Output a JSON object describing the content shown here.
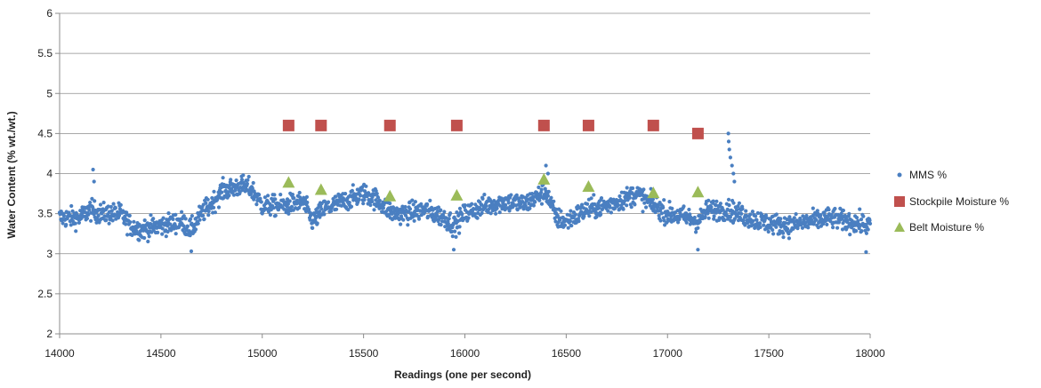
{
  "chart_data": {
    "type": "scatter",
    "xlabel": "Readings (one per second)",
    "ylabel": "Water Content (% wt./wt.)",
    "xlim": [
      14000,
      18000
    ],
    "ylim": [
      2,
      6
    ],
    "xticks": [
      14000,
      14500,
      15000,
      15500,
      16000,
      16500,
      17000,
      17500,
      18000
    ],
    "yticks": [
      2,
      2.5,
      3,
      3.5,
      4,
      4.5,
      5,
      5.5,
      6
    ],
    "xtick_labels": [
      "14000",
      "14500",
      "15000",
      "15500",
      "16000",
      "16500",
      "17000",
      "17500",
      "18000"
    ],
    "ytick_labels": [
      "2",
      "2.5",
      "3",
      "3.5",
      "4",
      "4.5",
      "5",
      "5.5",
      "6"
    ],
    "grid": "horizontal",
    "legend_position": "right",
    "series": [
      {
        "name": "MMS %",
        "marker": "circle",
        "color": "#4a7fc1",
        "profile": [
          [
            14000,
            3.45
          ],
          [
            14100,
            3.45
          ],
          [
            14150,
            3.55
          ],
          [
            14200,
            3.5
          ],
          [
            14300,
            3.5
          ],
          [
            14350,
            3.35
          ],
          [
            14400,
            3.3
          ],
          [
            14500,
            3.35
          ],
          [
            14600,
            3.4
          ],
          [
            14650,
            3.3
          ],
          [
            14700,
            3.5
          ],
          [
            14760,
            3.65
          ],
          [
            14800,
            3.78
          ],
          [
            14900,
            3.85
          ],
          [
            14950,
            3.8
          ],
          [
            15000,
            3.6
          ],
          [
            15100,
            3.6
          ],
          [
            15200,
            3.65
          ],
          [
            15250,
            3.4
          ],
          [
            15300,
            3.55
          ],
          [
            15400,
            3.65
          ],
          [
            15500,
            3.75
          ],
          [
            15550,
            3.7
          ],
          [
            15600,
            3.6
          ],
          [
            15650,
            3.5
          ],
          [
            15700,
            3.5
          ],
          [
            15800,
            3.55
          ],
          [
            15900,
            3.45
          ],
          [
            15950,
            3.35
          ],
          [
            16000,
            3.5
          ],
          [
            16100,
            3.6
          ],
          [
            16200,
            3.65
          ],
          [
            16300,
            3.62
          ],
          [
            16400,
            3.78
          ],
          [
            16450,
            3.45
          ],
          [
            16500,
            3.4
          ],
          [
            16600,
            3.55
          ],
          [
            16700,
            3.6
          ],
          [
            16800,
            3.7
          ],
          [
            16850,
            3.75
          ],
          [
            16900,
            3.65
          ],
          [
            17000,
            3.5
          ],
          [
            17100,
            3.45
          ],
          [
            17150,
            3.4
          ],
          [
            17200,
            3.55
          ],
          [
            17300,
            3.55
          ],
          [
            17400,
            3.45
          ],
          [
            17500,
            3.38
          ],
          [
            17600,
            3.35
          ],
          [
            17700,
            3.4
          ],
          [
            17800,
            3.45
          ],
          [
            17900,
            3.4
          ],
          [
            18000,
            3.35
          ]
        ],
        "spikes": [
          {
            "x": 14165,
            "y": 4.05
          },
          {
            "x": 14170,
            "y": 3.9
          },
          {
            "x": 16400,
            "y": 4.1
          },
          {
            "x": 16410,
            "y": 4.0
          },
          {
            "x": 17300,
            "y": 4.5
          },
          {
            "x": 17302,
            "y": 4.4
          },
          {
            "x": 17305,
            "y": 4.3
          },
          {
            "x": 17310,
            "y": 4.2
          },
          {
            "x": 17318,
            "y": 4.1
          },
          {
            "x": 17325,
            "y": 4.0
          },
          {
            "x": 17330,
            "y": 3.9
          },
          {
            "x": 15945,
            "y": 3.05
          },
          {
            "x": 17150,
            "y": 3.05
          },
          {
            "x": 17980,
            "y": 3.02
          },
          {
            "x": 14650,
            "y": 3.03
          }
        ]
      },
      {
        "name": "Stockpile Moisture %",
        "marker": "square",
        "color": "#c0504d",
        "x": [
          15130,
          15290,
          15630,
          15960,
          16390,
          16610,
          16930,
          17150
        ],
        "y": [
          4.6,
          4.6,
          4.6,
          4.6,
          4.6,
          4.6,
          4.6,
          4.5
        ]
      },
      {
        "name": "Belt Moisture %",
        "marker": "triangle",
        "color": "#9bbb59",
        "x": [
          15130,
          15290,
          15630,
          15960,
          16390,
          16610,
          16930,
          17150
        ],
        "y": [
          3.89,
          3.8,
          3.72,
          3.73,
          3.93,
          3.84,
          3.76,
          3.77
        ]
      }
    ]
  }
}
